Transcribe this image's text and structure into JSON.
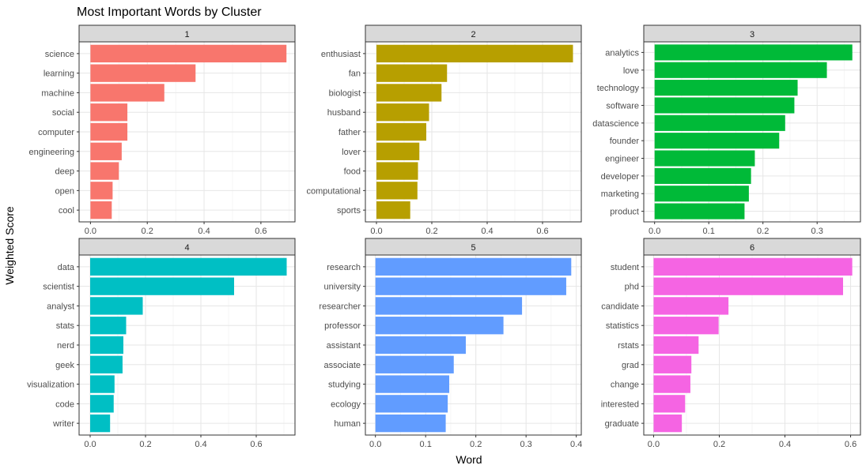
{
  "chart_data": {
    "type": "bar",
    "title": "Most Important Words by Cluster",
    "xlabel": "Word",
    "ylabel": "Weighted Score",
    "orientation": "horizontal",
    "grid": true,
    "facets": [
      {
        "label": "1",
        "color": "#F8766D",
        "xlim": [
          -0.04,
          0.72
        ],
        "ticks": [
          0.0,
          0.2,
          0.4,
          0.6
        ],
        "tick_labels": [
          "0.0",
          "0.2",
          "0.4",
          "0.6"
        ],
        "categories": [
          "science",
          "learning",
          "machine",
          "social",
          "computer",
          "engineering",
          "deep",
          "open",
          "cool"
        ],
        "values": [
          0.69,
          0.37,
          0.26,
          0.13,
          0.13,
          0.11,
          0.1,
          0.078,
          0.075
        ]
      },
      {
        "label": "2",
        "color": "#B79F00",
        "xlim": [
          -0.04,
          0.74
        ],
        "ticks": [
          0.0,
          0.2,
          0.4,
          0.6
        ],
        "tick_labels": [
          "0.0",
          "0.2",
          "0.4",
          "0.6"
        ],
        "categories": [
          "enthusiast",
          "fan",
          "biologist",
          "husband",
          "father",
          "lover",
          "food",
          "computational",
          "sports"
        ],
        "values": [
          0.71,
          0.255,
          0.235,
          0.19,
          0.18,
          0.155,
          0.15,
          0.148,
          0.122
        ]
      },
      {
        "label": "3",
        "color": "#00BA38",
        "xlim": [
          -0.02,
          0.38
        ],
        "ticks": [
          0.0,
          0.1,
          0.2,
          0.3
        ],
        "tick_labels": [
          "0.0",
          "0.1",
          "0.2",
          "0.3"
        ],
        "categories": [
          "analytics",
          "love",
          "technology",
          "software",
          "datascience",
          "founder",
          "engineer",
          "developer",
          "marketing",
          "product"
        ],
        "values": [
          0.365,
          0.318,
          0.264,
          0.258,
          0.241,
          0.23,
          0.185,
          0.178,
          0.174,
          0.166
        ]
      },
      {
        "label": "4",
        "color": "#00BFC4",
        "xlim": [
          -0.04,
          0.74
        ],
        "ticks": [
          0.0,
          0.2,
          0.4,
          0.6
        ],
        "tick_labels": [
          "0.0",
          "0.2",
          "0.4",
          "0.6"
        ],
        "categories": [
          "data",
          "scientist",
          "analyst",
          "stats",
          "nerd",
          "geek",
          "visualization",
          "code",
          "writer"
        ],
        "values": [
          0.71,
          0.52,
          0.19,
          0.13,
          0.12,
          0.117,
          0.088,
          0.085,
          0.072
        ]
      },
      {
        "label": "5",
        "color": "#619CFF",
        "xlim": [
          -0.02,
          0.41
        ],
        "ticks": [
          0.0,
          0.1,
          0.2,
          0.3,
          0.4
        ],
        "tick_labels": [
          "0.0",
          "0.1",
          "0.2",
          "0.3",
          "0.4"
        ],
        "categories": [
          "research",
          "university",
          "researcher",
          "professor",
          "assistant",
          "associate",
          "studying",
          "ecology",
          "human"
        ],
        "values": [
          0.39,
          0.38,
          0.292,
          0.255,
          0.18,
          0.156,
          0.147,
          0.144,
          0.14
        ]
      },
      {
        "label": "6",
        "color": "#F564E3",
        "xlim": [
          -0.03,
          0.63
        ],
        "ticks": [
          0.0,
          0.2,
          0.4,
          0.6
        ],
        "tick_labels": [
          "0.0",
          "0.2",
          "0.4",
          "0.6"
        ],
        "categories": [
          "student",
          "phd",
          "candidate",
          "statistics",
          "rstats",
          "grad",
          "change",
          "interested",
          "graduate"
        ],
        "values": [
          0.605,
          0.577,
          0.228,
          0.198,
          0.137,
          0.115,
          0.112,
          0.096,
          0.086
        ]
      }
    ]
  }
}
